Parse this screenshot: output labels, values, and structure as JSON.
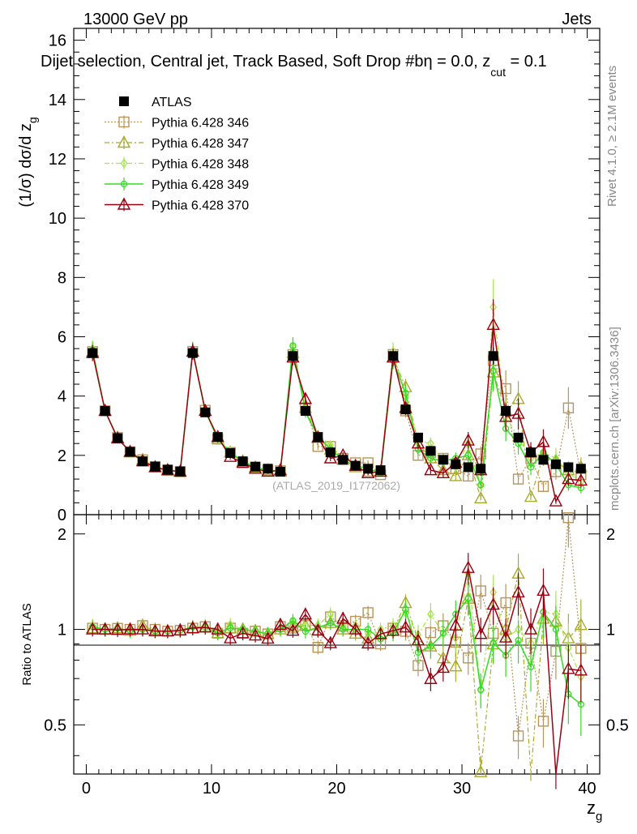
{
  "header": {
    "left": "13000 GeV pp",
    "right": "Jets"
  },
  "colors": {
    "atlas": "#000000",
    "s346": "#b8955a",
    "s347": "#a8ab2b",
    "s348": "#a6e64a",
    "s349": "#33dd22",
    "s370": "#990011"
  },
  "chart_data": {
    "type": "scatter",
    "title": "Dijet selection, Central jet, Track Based, Soft Drop #beta = 0.0, z_cut = 0.1",
    "title_parts": {
      "main": "Dijet selection, Central jet, Track Based, Soft Drop #b",
      "eta": "η",
      "eq": " = 0.0, z",
      "cut": "cut",
      "tail": " = 0.1"
    },
    "ylabel_parts": {
      "a": "(1/σ) dσ/d z",
      "sub": "g"
    },
    "xlabel_parts": {
      "a": "z",
      "sub": "g"
    },
    "ratio_ylabel": "Ratio to ATLAS",
    "xlim": [
      -1,
      41
    ],
    "ylim": [
      0,
      16.4
    ],
    "ratio_ylim": [
      0.35,
      2.3
    ],
    "xticks": [
      "0",
      "10",
      "20",
      "30",
      "40"
    ],
    "yticks": [
      "0",
      "2",
      "4",
      "6",
      "8",
      "10",
      "12",
      "14",
      "16"
    ],
    "ratio_yticks": [
      "0.5",
      "1",
      "2"
    ],
    "side_text": {
      "rivet": "Rivet 4.1.0, ≥ 2.1M events",
      "mcplots": "mcplots.cern.ch [arXiv:1306.3436]"
    },
    "watermark": "(ATLAS_2019_I1772062)",
    "legend_position": "top-left",
    "x": [
      0.5,
      1.5,
      2.5,
      3.5,
      4.5,
      5.5,
      6.5,
      7.5,
      8.5,
      9.5,
      10.5,
      11.5,
      12.5,
      13.5,
      14.5,
      15.5,
      16.5,
      17.5,
      18.5,
      19.5,
      20.5,
      21.5,
      22.5,
      23.5,
      24.5,
      25.5,
      26.5,
      27.5,
      28.5,
      29.5,
      30.5,
      31.5,
      32.5,
      33.5,
      34.5,
      35.5,
      36.5,
      37.5,
      38.5,
      39.5
    ],
    "series": [
      {
        "name": "ATLAS",
        "marker": "filled-square",
        "values": [
          5.45,
          3.5,
          2.58,
          2.12,
          1.8,
          1.62,
          1.52,
          1.46,
          5.45,
          3.45,
          2.62,
          2.08,
          1.8,
          1.62,
          1.55,
          1.45,
          5.35,
          3.5,
          2.62,
          2.1,
          1.85,
          1.65,
          1.55,
          1.5,
          5.35,
          3.55,
          2.6,
          2.15,
          1.85,
          1.7,
          1.6,
          1.55,
          5.35,
          3.5,
          2.6,
          2.1,
          1.85,
          1.7,
          1.6,
          1.55
        ]
      },
      {
        "name": "Pythia 6.428 346",
        "marker": "open-square",
        "style": "dotted",
        "values": [
          5.5,
          3.5,
          2.6,
          2.12,
          1.85,
          1.62,
          1.5,
          1.45,
          5.5,
          3.52,
          2.55,
          2.1,
          1.75,
          1.6,
          1.5,
          1.48,
          5.4,
          3.6,
          2.3,
          2.3,
          1.9,
          1.75,
          1.75,
          1.35,
          5.4,
          3.5,
          2.0,
          2.1,
          1.9,
          1.55,
          1.3,
          2.05,
          5.2,
          4.25,
          1.2,
          1.9,
          0.95,
          1.45,
          3.6,
          1.35
        ]
      },
      {
        "name": "Pythia 6.428 347",
        "marker": "open-triangle",
        "style": "dashdot",
        "values": [
          5.5,
          3.5,
          2.6,
          2.1,
          1.85,
          1.6,
          1.5,
          1.45,
          5.5,
          3.5,
          2.55,
          2.1,
          1.8,
          1.6,
          1.5,
          1.45,
          5.45,
          3.6,
          2.6,
          2.2,
          1.85,
          1.6,
          1.45,
          1.45,
          5.3,
          4.3,
          2.4,
          1.9,
          1.5,
          1.3,
          2.0,
          0.55,
          4.8,
          3.5,
          3.9,
          0.6,
          2.0,
          1.8,
          1.5,
          1.6
        ]
      },
      {
        "name": "Pythia 6.428 348",
        "marker": "open-diamond",
        "style": "dashdot",
        "values": [
          5.6,
          3.5,
          2.6,
          2.1,
          1.8,
          1.6,
          1.5,
          1.45,
          5.55,
          3.55,
          2.6,
          2.15,
          1.8,
          1.6,
          1.5,
          1.45,
          5.65,
          3.6,
          2.7,
          2.35,
          1.9,
          1.7,
          1.5,
          1.5,
          5.5,
          4.0,
          2.5,
          2.4,
          1.8,
          1.6,
          2.4,
          1.0,
          7.0,
          3.3,
          2.6,
          1.9,
          2.1,
          1.9,
          1.4,
          1.1
        ]
      },
      {
        "name": "Pythia 6.428 349",
        "marker": "open-circle",
        "style": "solid",
        "values": [
          5.55,
          3.5,
          2.6,
          2.1,
          1.8,
          1.6,
          1.5,
          1.45,
          5.55,
          3.5,
          2.55,
          2.1,
          1.8,
          1.6,
          1.5,
          1.45,
          5.7,
          3.45,
          2.65,
          2.2,
          1.85,
          1.65,
          1.55,
          1.4,
          5.2,
          4.1,
          2.2,
          1.9,
          1.8,
          1.9,
          2.0,
          1.0,
          4.85,
          2.9,
          2.4,
          1.6,
          2.1,
          1.7,
          1.0,
          0.9
        ]
      },
      {
        "name": "Pythia 6.428 370",
        "marker": "open-triangle",
        "style": "solid",
        "values": [
          5.45,
          3.5,
          2.57,
          2.12,
          1.8,
          1.6,
          1.5,
          1.45,
          5.5,
          3.5,
          2.62,
          1.95,
          1.75,
          1.55,
          1.45,
          1.5,
          5.3,
          3.9,
          2.6,
          1.9,
          2.0,
          1.65,
          1.4,
          1.45,
          5.3,
          3.6,
          2.4,
          1.5,
          1.4,
          1.75,
          2.5,
          1.5,
          6.4,
          3.3,
          3.4,
          2.1,
          2.45,
          0.45,
          1.2,
          1.15
        ]
      }
    ]
  }
}
